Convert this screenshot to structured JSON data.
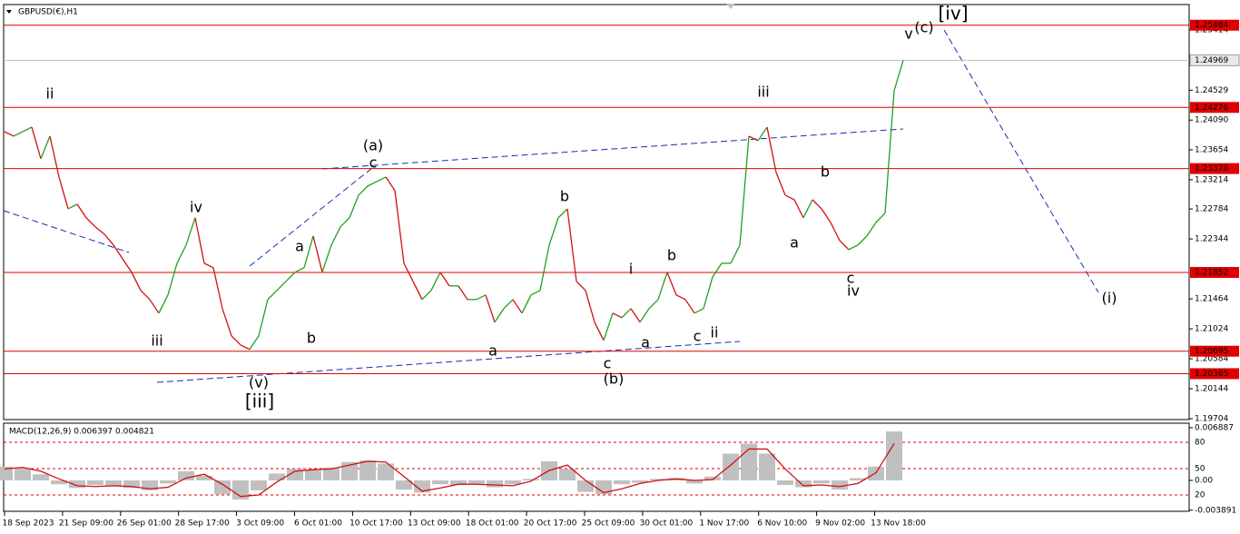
{
  "chart_data": {
    "type": "line",
    "title": "GBPUSD(€),H1",
    "x_axis_labels": [
      "18 Sep 2023",
      "21 Sep 09:00",
      "26 Sep 01:00",
      "28 Sep 17:00",
      "3 Oct 09:00",
      "6 Oct 01:00",
      "10 Oct 17:00",
      "13 Oct 09:00",
      "18 Oct 01:00",
      "20 Oct 17:00",
      "25 Oct 09:00",
      "30 Oct 01:00",
      "1 Nov 17:00",
      "6 Nov 10:00",
      "9 Nov 02:00",
      "13 Nov 18:00"
    ],
    "ylim": [
      1.19704,
      1.25854
    ],
    "yticks": [
      1.25414,
      1.24529,
      {
        "value": 1.2409,
        "label": "1.24090"
      },
      1.23654,
      1.23214,
      1.22784,
      1.22344,
      1.21464,
      1.21024,
      1.20584,
      1.20144,
      1.19704
    ],
    "levels": [
      1.25484,
      1.24276,
      1.23378,
      1.21852,
      1.20695,
      1.20365
    ],
    "level_color": "#e00000",
    "current_price": 1.24969,
    "up_color": "#20a020",
    "down_color": "#d01010",
    "series": [
      {
        "name": "GBPUSD",
        "values": [
          1.23921,
          1.23854,
          1.23921,
          1.23987,
          1.23521,
          1.23854,
          1.23254,
          1.22787,
          1.22854,
          1.22654,
          1.22521,
          1.22414,
          1.22254,
          1.22054,
          1.21854,
          1.21587,
          1.21454,
          1.21254,
          1.21521,
          1.21987,
          1.22254,
          1.22654,
          1.21987,
          1.21921,
          1.21321,
          1.20921,
          1.20787,
          1.20721,
          1.20921,
          1.21454,
          1.21587,
          1.21721,
          1.21854,
          1.21921,
          1.22387,
          1.21854,
          1.22254,
          1.22521,
          1.22654,
          1.22987,
          1.23121,
          1.23187,
          1.23254,
          1.23054,
          1.21987,
          1.21721,
          1.21454,
          1.21587,
          1.21854,
          1.21654,
          1.21654,
          1.21454,
          1.21454,
          1.21521,
          1.21121,
          1.21321,
          1.21454,
          1.21254,
          1.21521,
          1.21587,
          1.22254,
          1.22654,
          1.22787,
          1.21721,
          1.21587,
          1.21121,
          1.20854,
          1.21254,
          1.21187,
          1.21321,
          1.21121,
          1.21321,
          1.21454,
          1.21854,
          1.21521,
          1.21454,
          1.21254,
          1.21321,
          1.21787,
          1.21987,
          1.21987,
          1.22254,
          1.23854,
          1.23787,
          1.23987,
          1.23321,
          1.22987,
          1.22921,
          1.22654,
          1.22921,
          1.22787,
          1.22587,
          1.22321,
          1.22187,
          1.22254,
          1.22387,
          1.22587,
          1.22721,
          1.24521,
          1.24969
        ]
      }
    ],
    "annotations": [
      {
        "text": "ii",
        "color": "#e020e0"
      },
      {
        "text": "iii",
        "color": "#e020e0"
      },
      {
        "text": "iv",
        "color": "#e020e0"
      },
      {
        "text": "(v)",
        "color": "#2020a0"
      },
      {
        "text": "[iii]",
        "color": "#1b8a1b"
      },
      {
        "text": "a",
        "color": "#e020e0"
      },
      {
        "text": "b",
        "color": "#e020e0"
      },
      {
        "text": "(a)",
        "color": "#2020a0"
      },
      {
        "text": "c",
        "color": "#e020e0"
      },
      {
        "text": "a",
        "color": "#e020e0"
      },
      {
        "text": "b",
        "color": "#e020e0"
      },
      {
        "text": "c",
        "color": "#e020e0"
      },
      {
        "text": "(b)",
        "color": "#2020a0"
      },
      {
        "text": "i",
        "color": "#e020e0"
      },
      {
        "text": "a",
        "color": "#000000"
      },
      {
        "text": "b",
        "color": "#000000"
      },
      {
        "text": "c",
        "color": "#000000"
      },
      {
        "text": "ii",
        "color": "#e020e0"
      },
      {
        "text": "iii",
        "color": "#e020e0"
      },
      {
        "text": "b",
        "color": "#000000"
      },
      {
        "text": "a",
        "color": "#000000"
      },
      {
        "text": "c",
        "color": "#000000"
      },
      {
        "text": "iv",
        "color": "#e020e0"
      },
      {
        "text": "v",
        "color": "#e020e0"
      },
      {
        "text": "(c)",
        "color": "#2020a0"
      },
      {
        "text": "[iv]",
        "color": "#1b8a1b"
      },
      {
        "text": "(i)",
        "color": "#2020a0"
      }
    ],
    "macd": {
      "title": "MACD(12,26,9) 0.006397 0.004821",
      "ylim": [
        -0.00392,
        0.00724
      ],
      "yticks": [
        0.006887,
        {
          "value": 0,
          "label": "0.00"
        },
        -0.003891
      ],
      "level_lines": [
        {
          "value": 0.00499,
          "label": "80"
        },
        {
          "value": 0.00154,
          "label": "50"
        },
        {
          "value": -0.0019,
          "label": "20"
        }
      ],
      "hist_color": "#c0c0c0",
      "signal_color": "#d01010",
      "histogram": [
        0.0018,
        0.0016,
        0.0008,
        -0.0005,
        -0.001,
        -0.0006,
        -0.0007,
        -0.001,
        -0.0013,
        -0.0004,
        0.0012,
        0.0006,
        -0.0018,
        -0.0025,
        -0.0013,
        0.0009,
        0.0015,
        0.0013,
        0.0017,
        0.0024,
        0.0026,
        0.0022,
        -0.0012,
        -0.0016,
        -0.0005,
        -0.0006,
        -0.0004,
        -0.0009,
        -0.0005,
        0.0002,
        0.0025,
        0.0015,
        -0.0015,
        -0.0018,
        -0.0005,
        -0.0003,
        0.0002,
        0.0003,
        -0.0004,
        0.0005,
        0.0035,
        0.0048,
        0.0035,
        -0.0006,
        -0.0009,
        -0.0004,
        -0.0012,
        0.0003,
        0.0018,
        0.006397
      ],
      "signal": [
        0.0015,
        0.0017,
        0.0012,
        0.0002,
        -0.0007,
        -0.0008,
        -0.0007,
        -0.0008,
        -0.0011,
        -0.0009,
        0.0003,
        0.0008,
        -0.0005,
        -0.0021,
        -0.0019,
        -0.0002,
        0.0012,
        0.0014,
        0.0015,
        0.002,
        0.0025,
        0.0024,
        0.0005,
        -0.0014,
        -0.001,
        -0.0005,
        -0.0005,
        -0.0006,
        -0.0007,
        -0.0001,
        0.0013,
        0.002,
        0,
        -0.0016,
        -0.0011,
        -0.0004,
        0,
        0.0002,
        0,
        0.0001,
        0.002,
        0.0041,
        0.0041,
        0.0015,
        -0.0007,
        -0.0006,
        -0.0008,
        -0.0004,
        0.001,
        0.004821
      ]
    }
  }
}
